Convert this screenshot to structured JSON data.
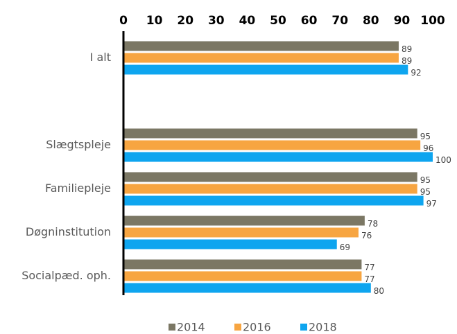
{
  "chart_data": {
    "type": "barh",
    "categories": [
      "I alt",
      null,
      "Slægtspleje",
      "Familiepleje",
      "Døgninstitution",
      "Socialpæd. oph."
    ],
    "series": [
      {
        "name": "2014",
        "color": "#7b7764",
        "values": [
          89,
          null,
          95,
          95,
          78,
          77
        ]
      },
      {
        "name": "2016",
        "color": "#f7a541",
        "values": [
          89,
          null,
          96,
          95,
          76,
          77
        ]
      },
      {
        "name": "2018",
        "color": "#0ea5ef",
        "values": [
          92,
          null,
          100,
          97,
          69,
          80
        ]
      }
    ],
    "xlim": [
      0,
      100
    ],
    "xticks": [
      0,
      10,
      20,
      30,
      40,
      50,
      60,
      70,
      80,
      90,
      100
    ],
    "legend": "bottom"
  }
}
